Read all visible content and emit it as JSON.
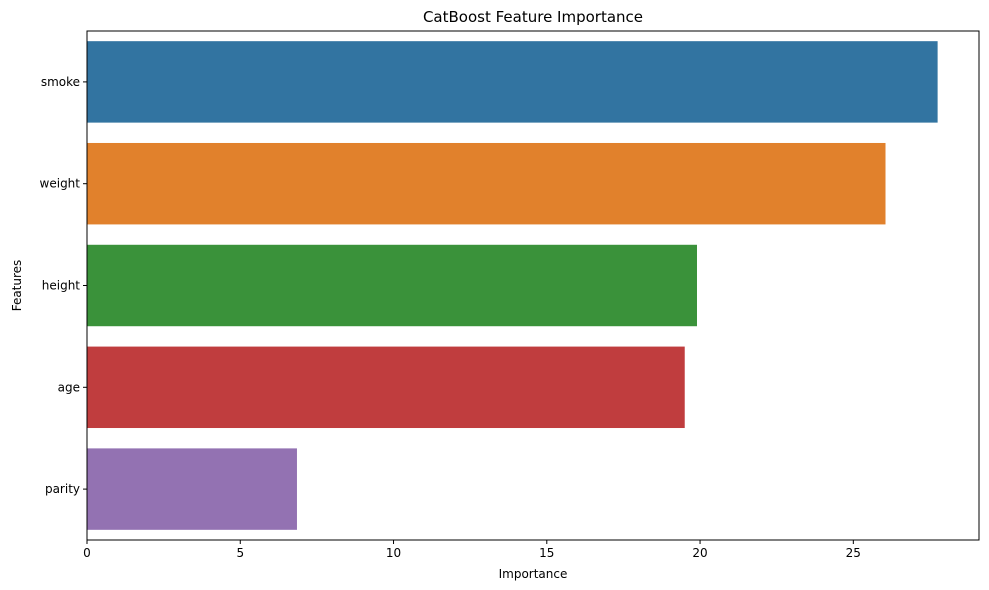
{
  "chart_data": {
    "type": "bar",
    "orientation": "horizontal",
    "title": "CatBoost Feature Importance",
    "xlabel": "Importance",
    "ylabel": "Features",
    "categories": [
      "smoke",
      "weight",
      "height",
      "age",
      "parity"
    ],
    "values": [
      27.75,
      26.05,
      19.9,
      19.5,
      6.85
    ],
    "colors": [
      "#3274a1",
      "#e1812c",
      "#3a923a",
      "#c03d3e",
      "#9372b2"
    ],
    "xlim": [
      0,
      29.1
    ],
    "xticks": [
      0,
      5,
      10,
      15,
      20,
      25
    ],
    "grid": false,
    "legend": "none"
  }
}
